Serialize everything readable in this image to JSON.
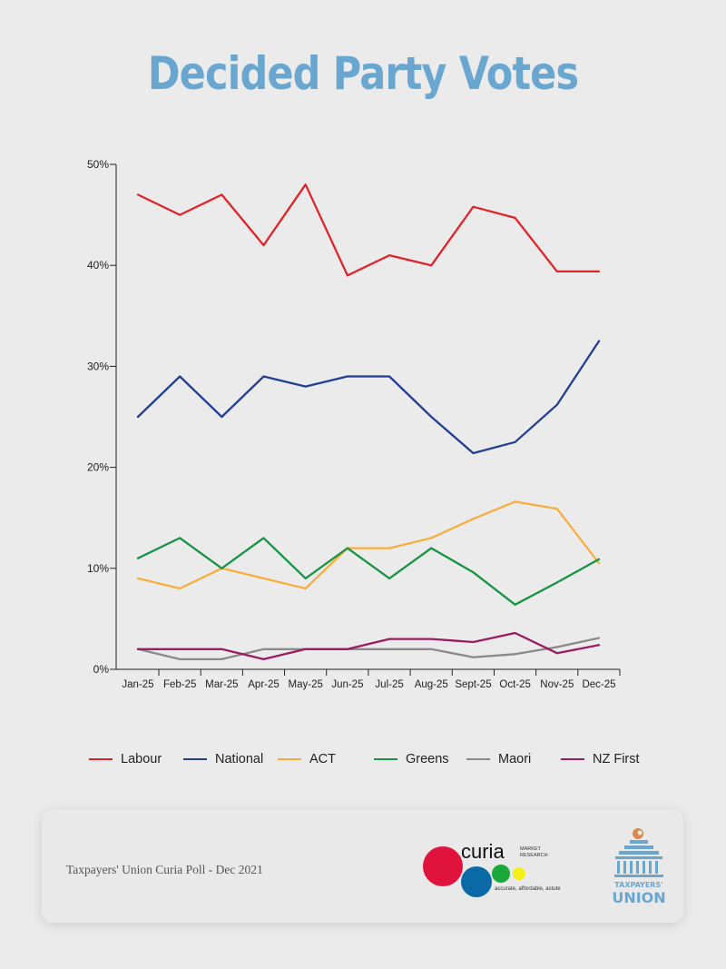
{
  "title": "Decided Party Votes",
  "chart_data": {
    "type": "line",
    "title": "Decided Party Votes",
    "xlabel": "",
    "ylabel": "",
    "categories": [
      "Jan-25",
      "Feb-25",
      "Mar-25",
      "Apr-25",
      "May-25",
      "Jun-25",
      "Jul-25",
      "Aug-25",
      "Sept-25",
      "Oct-25",
      "Nov-25",
      "Dec-25"
    ],
    "ylim": [
      0,
      50
    ],
    "yticks": [
      0,
      10,
      20,
      30,
      40,
      50
    ],
    "ytick_labels": [
      "0%",
      "10%",
      "20%",
      "30%",
      "40%",
      "50%"
    ],
    "grid": false,
    "legend_position": "bottom",
    "series": [
      {
        "name": "Labour",
        "color": "#e0242b",
        "values": [
          47,
          45,
          47,
          42,
          48,
          39,
          41,
          40,
          45.8,
          44.7,
          39.4,
          39.4
        ]
      },
      {
        "name": "National",
        "color": "#223f92",
        "values": [
          25,
          29,
          25,
          29,
          28,
          29,
          29,
          25,
          21.4,
          22.5,
          26.2,
          32.5
        ]
      },
      {
        "name": "ACT",
        "color": "#f7ae3f",
        "values": [
          9,
          8,
          10,
          9,
          8,
          12,
          12,
          13,
          14.9,
          16.6,
          15.9,
          10.5
        ]
      },
      {
        "name": "Greens",
        "color": "#169444",
        "values": [
          11,
          13,
          10,
          13,
          9,
          12,
          9,
          12,
          9.6,
          6.4,
          8.6,
          10.9
        ]
      },
      {
        "name": "Maori",
        "color": "#8a8a8a",
        "values": [
          2,
          1,
          1,
          2,
          2,
          2,
          2,
          2,
          1.2,
          1.5,
          2.2,
          3.1
        ]
      },
      {
        "name": "NZ First",
        "color": "#9b1c62",
        "values": [
          2,
          2,
          2,
          1,
          2,
          2,
          3,
          3,
          2.7,
          3.6,
          1.6,
          2.4
        ]
      }
    ]
  },
  "footer": {
    "source": "Taxpayers' Union Curia Poll - Dec 2021",
    "curia_name": "curia",
    "curia_sub1": "MARKET",
    "curia_sub2": "RESEARCH",
    "curia_tagline": "accurate, affordable, astute",
    "tu_line1": "TAXPAYERS'",
    "tu_line2": "UNION"
  }
}
